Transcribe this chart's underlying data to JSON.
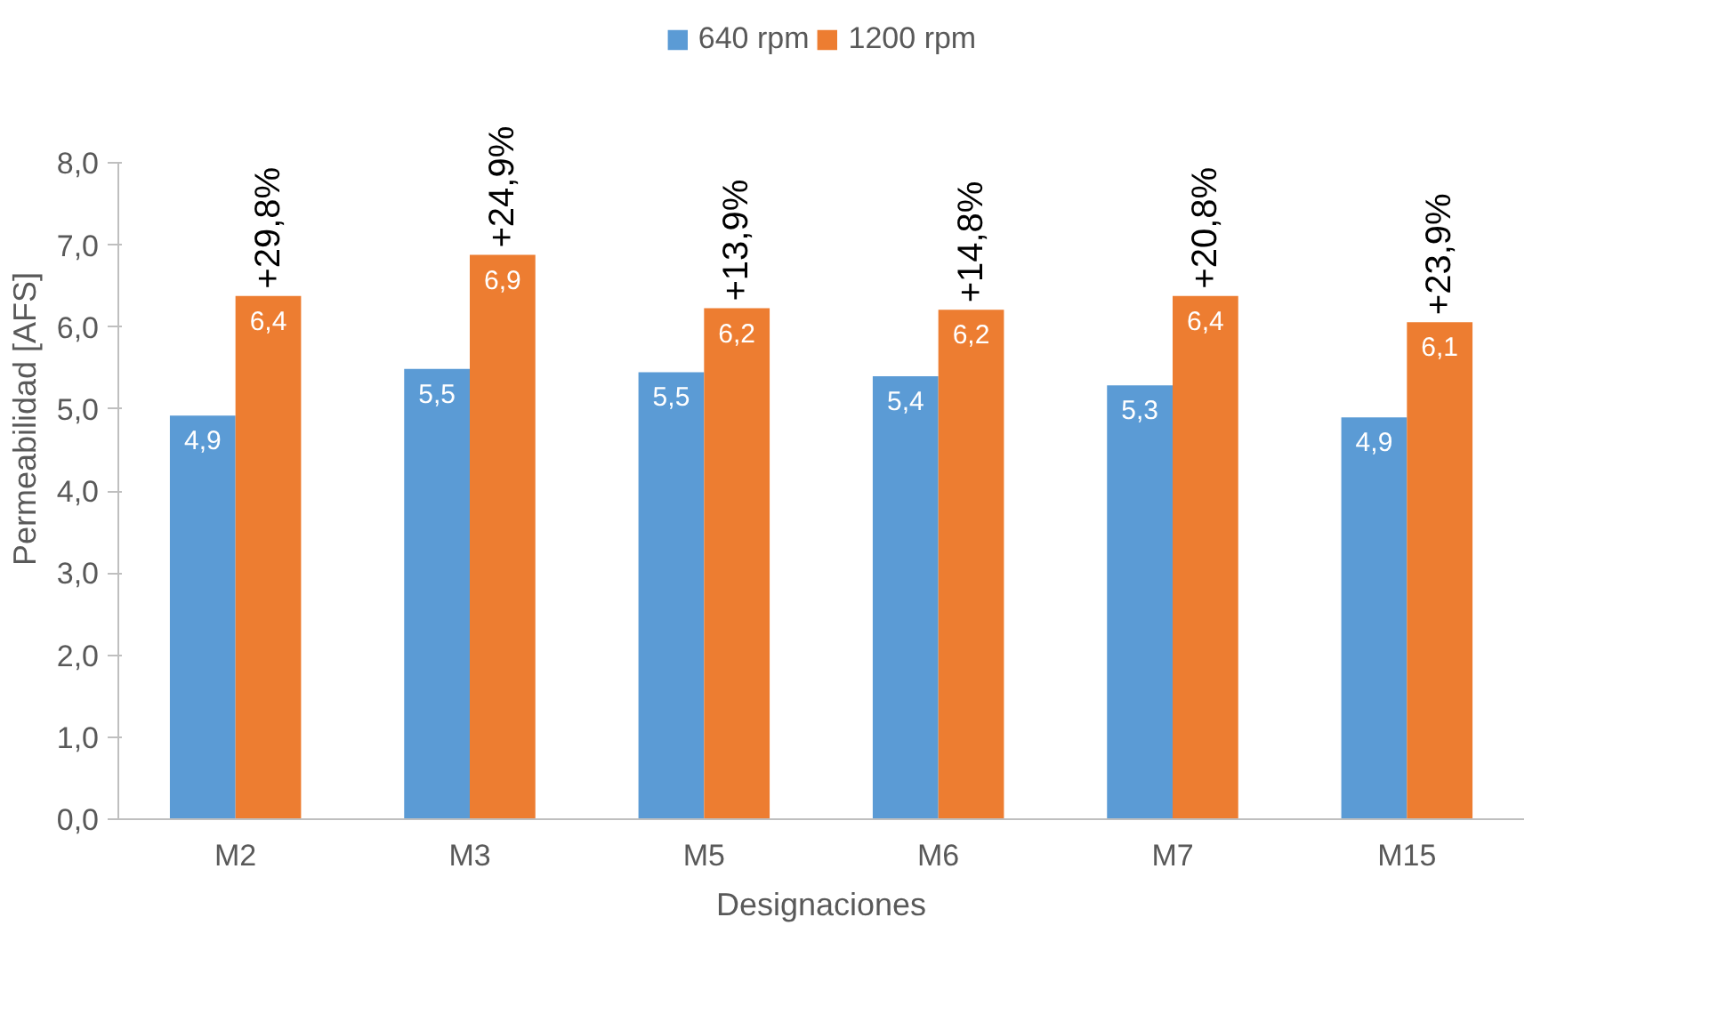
{
  "chart_data": {
    "type": "bar",
    "xlabel": "Designaciones",
    "ylabel": "Permeabilidad [AFS]",
    "categories": [
      "M2",
      "M3",
      "M5",
      "M6",
      "M7",
      "M15"
    ],
    "series": [
      {
        "name": "640 rpm",
        "color": "#5b9bd5",
        "values": [
          4.92,
          5.49,
          5.45,
          5.4,
          5.29,
          4.9
        ],
        "value_labels": [
          "4,9",
          "5,5",
          "5,5",
          "5,4",
          "5,3",
          "4,9"
        ]
      },
      {
        "name": "1200 rpm",
        "color": "#ed7d31",
        "values": [
          6.38,
          6.88,
          6.23,
          6.21,
          6.38,
          6.06
        ],
        "value_labels": [
          "6,4",
          "6,9",
          "6,2",
          "6,2",
          "6,4",
          "6,1"
        ]
      }
    ],
    "ylim": [
      0,
      8
    ],
    "yticks": [
      {
        "value": 0,
        "label": "0,0"
      },
      {
        "value": 1,
        "label": "1,0"
      },
      {
        "value": 2,
        "label": "2,0"
      },
      {
        "value": 3,
        "label": "3,0"
      },
      {
        "value": 4,
        "label": "4,0"
      },
      {
        "value": 5,
        "label": "5,0"
      },
      {
        "value": 6,
        "label": "6,0"
      },
      {
        "value": 7,
        "label": "7,0"
      },
      {
        "value": 8,
        "label": "8,0"
      }
    ],
    "annotations": [
      {
        "text": "+29,8%",
        "x": "M2",
        "y": 6.38
      },
      {
        "text": "+24,9%",
        "x": "M3",
        "y": 6.88
      },
      {
        "text": "+13,9%",
        "x": "M5",
        "y": 6.23
      },
      {
        "text": "+14,8%",
        "x": "M6",
        "y": 6.21
      },
      {
        "text": "+20,8%",
        "x": "M7",
        "y": 6.38
      },
      {
        "text": "+23,9%",
        "x": "M15",
        "y": 6.06
      }
    ],
    "grid": false,
    "legend": "top"
  }
}
